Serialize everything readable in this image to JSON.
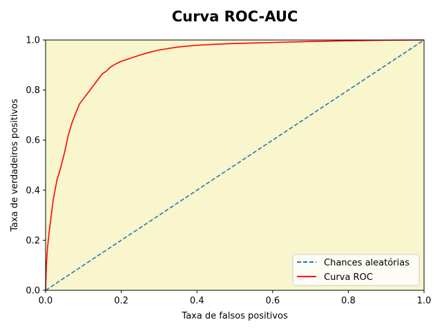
{
  "chart_data": {
    "type": "line",
    "title": "Curva ROC-AUC",
    "xlabel": "Taxa de falsos positivos",
    "ylabel": "Taxa de verdadeiros positivos",
    "xlim": [
      0,
      1
    ],
    "ylim": [
      0,
      1
    ],
    "xticks": [
      "0.0",
      "0.2",
      "0.4",
      "0.6",
      "0.8",
      "1.0"
    ],
    "yticks": [
      "0.0",
      "0.2",
      "0.4",
      "0.6",
      "0.8",
      "1.0"
    ],
    "grid": false,
    "legend_position": "bottom-right",
    "fill_color": "#f9f5cd",
    "series": [
      {
        "name": "Chances aleatórias",
        "color": "#1f77b4",
        "style": "dashed",
        "x": [
          0,
          1
        ],
        "y": [
          0,
          1
        ]
      },
      {
        "name": "Curva ROC",
        "color": "#ff0000",
        "style": "solid",
        "x": [
          0.0,
          0.002,
          0.005,
          0.01,
          0.015,
          0.02,
          0.025,
          0.03,
          0.04,
          0.05,
          0.06,
          0.07,
          0.08,
          0.09,
          0.1,
          0.11,
          0.12,
          0.13,
          0.14,
          0.15,
          0.16,
          0.17,
          0.18,
          0.19,
          0.2,
          0.22,
          0.25,
          0.28,
          0.3,
          0.35,
          0.4,
          0.45,
          0.5,
          0.6,
          0.7,
          0.8,
          0.9,
          1.0
        ],
        "y": [
          0.0,
          0.1,
          0.17,
          0.24,
          0.3,
          0.36,
          0.4,
          0.44,
          0.49,
          0.55,
          0.62,
          0.67,
          0.71,
          0.745,
          0.765,
          0.785,
          0.805,
          0.825,
          0.845,
          0.865,
          0.875,
          0.89,
          0.9,
          0.908,
          0.915,
          0.925,
          0.94,
          0.953,
          0.96,
          0.972,
          0.979,
          0.983,
          0.986,
          0.99,
          0.994,
          0.997,
          0.999,
          1.0
        ]
      }
    ]
  }
}
